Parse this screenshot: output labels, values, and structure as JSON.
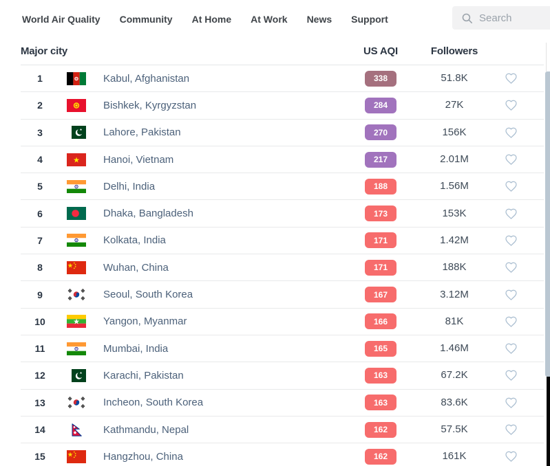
{
  "nav": {
    "items": [
      "World Air Quality",
      "Community",
      "At Home",
      "At Work",
      "News",
      "Support"
    ],
    "search": {
      "placeholder": "Search"
    }
  },
  "icons": {
    "search": "search-icon (magnifier)",
    "favorite": "heart-outline-icon"
  },
  "table": {
    "columns": {
      "city": "Major city",
      "aqi": "US AQI",
      "followers": "Followers"
    },
    "rows": [
      {
        "rank": "1",
        "city": "Kabul, Afghanistan",
        "flag": "af",
        "aqi": "338",
        "level": "hazardous",
        "followers": "51.8K"
      },
      {
        "rank": "2",
        "city": "Bishkek, Kyrgyzstan",
        "flag": "kg",
        "aqi": "284",
        "level": "very-unhealthy",
        "followers": "27K"
      },
      {
        "rank": "3",
        "city": "Lahore, Pakistan",
        "flag": "pk",
        "aqi": "270",
        "level": "very-unhealthy",
        "followers": "156K"
      },
      {
        "rank": "4",
        "city": "Hanoi, Vietnam",
        "flag": "vn",
        "aqi": "217",
        "level": "very-unhealthy",
        "followers": "2.01M"
      },
      {
        "rank": "5",
        "city": "Delhi, India",
        "flag": "in",
        "aqi": "188",
        "level": "unhealthy",
        "followers": "1.56M"
      },
      {
        "rank": "6",
        "city": "Dhaka, Bangladesh",
        "flag": "bd",
        "aqi": "173",
        "level": "unhealthy",
        "followers": "153K"
      },
      {
        "rank": "7",
        "city": "Kolkata, India",
        "flag": "in",
        "aqi": "171",
        "level": "unhealthy",
        "followers": "1.42M"
      },
      {
        "rank": "8",
        "city": "Wuhan, China",
        "flag": "cn",
        "aqi": "171",
        "level": "unhealthy",
        "followers": "188K"
      },
      {
        "rank": "9",
        "city": "Seoul, South Korea",
        "flag": "kr",
        "aqi": "167",
        "level": "unhealthy",
        "followers": "3.12M"
      },
      {
        "rank": "10",
        "city": "Yangon, Myanmar",
        "flag": "mm",
        "aqi": "166",
        "level": "unhealthy",
        "followers": "81K"
      },
      {
        "rank": "11",
        "city": "Mumbai, India",
        "flag": "in",
        "aqi": "165",
        "level": "unhealthy",
        "followers": "1.46M"
      },
      {
        "rank": "12",
        "city": "Karachi, Pakistan",
        "flag": "pk",
        "aqi": "163",
        "level": "unhealthy",
        "followers": "67.2K"
      },
      {
        "rank": "13",
        "city": "Incheon, South Korea",
        "flag": "kr",
        "aqi": "163",
        "level": "unhealthy",
        "followers": "83.6K"
      },
      {
        "rank": "14",
        "city": "Kathmandu, Nepal",
        "flag": "np",
        "aqi": "162",
        "level": "unhealthy",
        "followers": "57.5K"
      },
      {
        "rank": "15",
        "city": "Hangzhou, China",
        "flag": "cn",
        "aqi": "162",
        "level": "unhealthy",
        "followers": "161K"
      }
    ]
  },
  "colors": {
    "aqi_levels": {
      "hazardous": "#a5707e",
      "very-unhealthy": "#a173bd",
      "unhealthy": "#f76c6c"
    },
    "city_link": "#4c617a",
    "heart_stroke": "#a9bdd0",
    "scrollbar_thumb": "#bac7d2"
  }
}
